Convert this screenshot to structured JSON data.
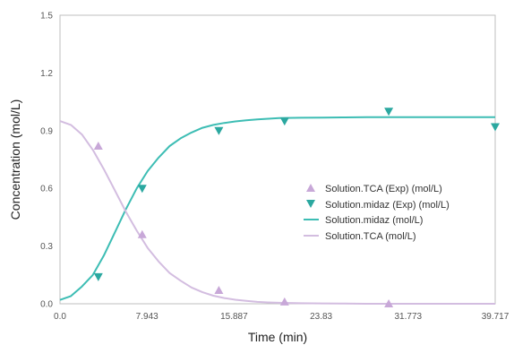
{
  "chart_data": {
    "type": "line",
    "xlabel": "Time (min)",
    "ylabel": "Concentration (mol/L)",
    "xlim": [
      0,
      39.717
    ],
    "ylim": [
      0,
      1.5
    ],
    "x_ticks": [
      "0.0",
      "7.943",
      "15.887",
      "23.83",
      "31.773",
      "39.717"
    ],
    "y_ticks": [
      "0.0",
      "0.3",
      "0.6",
      "0.9",
      "1.2",
      "1.5"
    ],
    "grid": false,
    "legend_position": "center-right",
    "series": [
      {
        "name": "Solution.TCA (Exp) (mol/L)",
        "kind": "scatter",
        "marker": "triangle-up",
        "color": "#c8a8d8",
        "x": [
          3.5,
          7.5,
          14.5,
          20.5,
          30.0
        ],
        "y": [
          0.82,
          0.36,
          0.07,
          0.01,
          0.0
        ]
      },
      {
        "name": "Solution.midaz (Exp) (mol/L)",
        "kind": "scatter",
        "marker": "triangle-down",
        "color": "#2ba8a0",
        "x": [
          3.5,
          7.5,
          14.5,
          20.5,
          30.0,
          39.717
        ],
        "y": [
          0.14,
          0.6,
          0.9,
          0.95,
          1.0,
          0.92
        ]
      },
      {
        "name": "Solution.midaz (mol/L)",
        "kind": "line",
        "color": "#3dbdb4",
        "x": [
          0,
          1,
          2,
          3,
          4,
          5,
          6,
          7,
          8,
          9,
          10,
          11,
          12,
          13,
          14,
          15,
          16,
          17,
          18,
          19,
          20,
          22,
          24,
          26,
          28,
          30,
          33,
          36,
          39.717
        ],
        "y": [
          0.02,
          0.04,
          0.09,
          0.15,
          0.25,
          0.37,
          0.49,
          0.6,
          0.69,
          0.76,
          0.82,
          0.86,
          0.89,
          0.915,
          0.93,
          0.94,
          0.948,
          0.954,
          0.958,
          0.962,
          0.965,
          0.967,
          0.968,
          0.969,
          0.97,
          0.97,
          0.97,
          0.97,
          0.97
        ]
      },
      {
        "name": "Solution.TCA (mol/L)",
        "kind": "line",
        "color": "#d3bde0",
        "x": [
          0,
          1,
          2,
          3,
          4,
          5,
          6,
          7,
          8,
          9,
          10,
          11,
          12,
          13,
          14,
          15,
          16,
          17,
          18,
          19,
          20,
          22,
          24,
          26,
          28,
          30,
          33,
          36,
          39.717
        ],
        "y": [
          0.95,
          0.93,
          0.88,
          0.8,
          0.7,
          0.59,
          0.48,
          0.38,
          0.29,
          0.22,
          0.16,
          0.12,
          0.085,
          0.06,
          0.042,
          0.03,
          0.021,
          0.015,
          0.01,
          0.007,
          0.005,
          0.003,
          0.002,
          0.001,
          0.0,
          0.0,
          0.0,
          0.0,
          0.0
        ]
      }
    ]
  }
}
